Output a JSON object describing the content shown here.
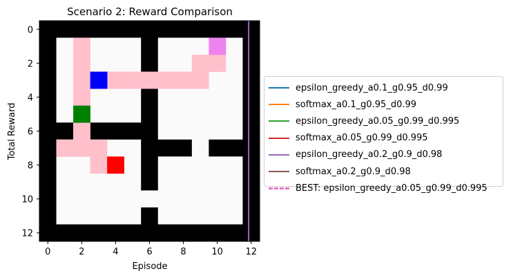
{
  "chart_data": {
    "type": "heatmap",
    "title": "Scenario 2: Reward Comparison",
    "xlabel": "Episode",
    "ylabel": "Total Reward",
    "xticks": [
      0,
      2,
      4,
      6,
      8,
      10,
      12
    ],
    "yticks": [
      0,
      2,
      4,
      6,
      8,
      10,
      12
    ],
    "xlim": [
      -0.5,
      12.5
    ],
    "ylim": [
      12.5,
      -0.5
    ],
    "grid": {
      "rows": 13,
      "cols": 13,
      "cells": [
        [
          0,
          0,
          0,
          0,
          0,
          0,
          0,
          0,
          0,
          0,
          0,
          0,
          0
        ],
        [
          0,
          1,
          1,
          1,
          1,
          1,
          0,
          1,
          1,
          1,
          1,
          1,
          0
        ],
        [
          0,
          1,
          1,
          1,
          1,
          1,
          0,
          1,
          1,
          1,
          1,
          1,
          0
        ],
        [
          0,
          1,
          1,
          1,
          1,
          1,
          0,
          1,
          1,
          1,
          1,
          1,
          0
        ],
        [
          0,
          1,
          1,
          1,
          1,
          1,
          0,
          1,
          1,
          1,
          1,
          1,
          0
        ],
        [
          0,
          1,
          1,
          1,
          1,
          1,
          0,
          1,
          1,
          1,
          1,
          1,
          0
        ],
        [
          0,
          0,
          1,
          0,
          0,
          0,
          0,
          1,
          1,
          1,
          1,
          1,
          0
        ],
        [
          0,
          1,
          1,
          1,
          1,
          1,
          0,
          0,
          0,
          1,
          0,
          0,
          0
        ],
        [
          0,
          1,
          1,
          1,
          1,
          1,
          0,
          1,
          1,
          1,
          1,
          1,
          0
        ],
        [
          0,
          1,
          1,
          1,
          1,
          1,
          0,
          1,
          1,
          1,
          1,
          1,
          0
        ],
        [
          0,
          1,
          1,
          1,
          1,
          1,
          1,
          1,
          1,
          1,
          1,
          1,
          0
        ],
        [
          0,
          1,
          1,
          1,
          1,
          1,
          0,
          1,
          1,
          1,
          1,
          1,
          0
        ],
        [
          0,
          0,
          0,
          0,
          0,
          0,
          0,
          0,
          0,
          0,
          0,
          0,
          0
        ]
      ],
      "wall_color": "#000000",
      "open_color": "#fafafa",
      "path_color": "#ffc0cb",
      "path": [
        [
          1,
          2
        ],
        [
          2,
          2
        ],
        [
          3,
          2
        ],
        [
          4,
          2
        ],
        [
          5,
          2
        ],
        [
          6,
          2
        ],
        [
          7,
          2
        ],
        [
          7,
          1
        ],
        [
          7,
          3
        ],
        [
          8,
          3
        ],
        [
          3,
          3
        ],
        [
          3,
          4
        ],
        [
          3,
          5
        ],
        [
          3,
          6
        ],
        [
          3,
          7
        ],
        [
          3,
          8
        ],
        [
          3,
          9
        ],
        [
          2,
          9
        ],
        [
          2,
          10
        ]
      ],
      "markers": [
        {
          "name": "start",
          "row": 3,
          "col": 3,
          "color": "#0000ff"
        },
        {
          "name": "checkpoint",
          "row": 5,
          "col": 2,
          "color": "#008000"
        },
        {
          "name": "end",
          "row": 8,
          "col": 4,
          "color": "#ff0000"
        },
        {
          "name": "goal",
          "row": 1,
          "col": 10,
          "color": "#ee82ee"
        }
      ]
    },
    "vline": {
      "x": 11.85,
      "color": "#9467bd"
    },
    "series": [
      {
        "name": "epsilon_greedy_a0.1_g0.95_d0.99",
        "color": "#1f77b4",
        "style": "solid"
      },
      {
        "name": "softmax_a0.1_g0.95_d0.99",
        "color": "#ff7f0e",
        "style": "solid"
      },
      {
        "name": "epsilon_greedy_a0.05_g0.99_d0.995",
        "color": "#2ca02c",
        "style": "solid"
      },
      {
        "name": "softmax_a0.05_g0.99_d0.995",
        "color": "#d62728",
        "style": "solid"
      },
      {
        "name": "epsilon_greedy_a0.2_g0.9_d0.98",
        "color": "#9467bd",
        "style": "solid"
      },
      {
        "name": "softmax_a0.2_g0.9_d0.98",
        "color": "#8c564b",
        "style": "solid"
      },
      {
        "name": "BEST: epsilon_greedy_a0.05_g0.99_d0.995",
        "color": "#e377c2",
        "style": "dashed"
      }
    ],
    "legend_position": "center-right, outside the plot"
  }
}
